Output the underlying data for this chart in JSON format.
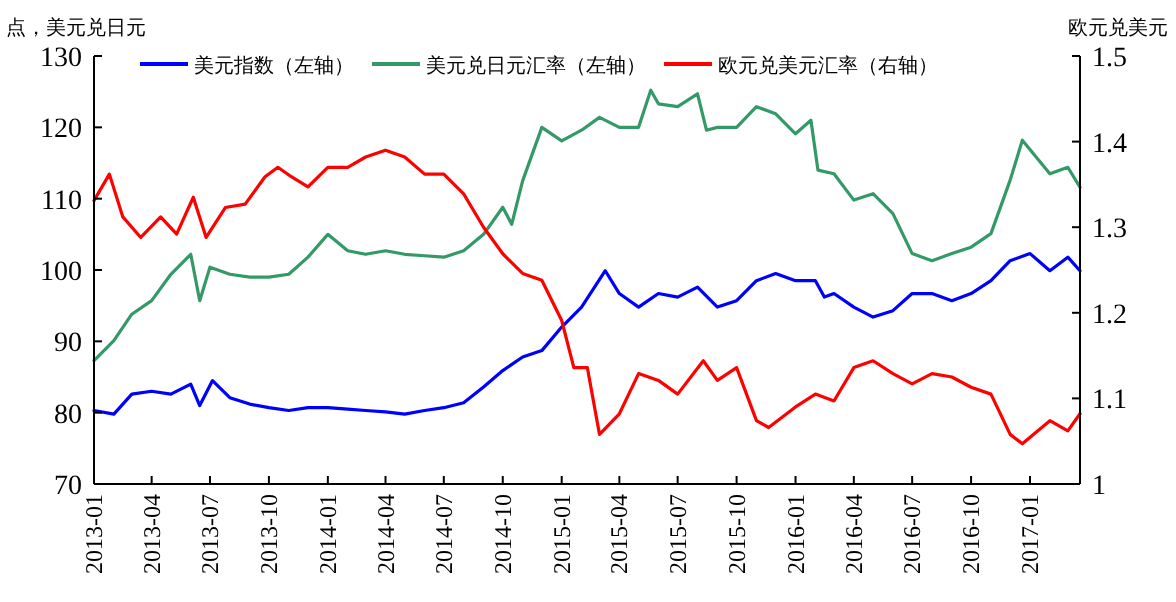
{
  "chart_data": {
    "type": "line",
    "ylabel": "点，美元兑日元",
    "y2label": "欧元兑美元",
    "xlim": [
      "2013-01-01",
      "2017-03-20"
    ],
    "xticks": [
      "2013-01",
      "2013-04",
      "2013-07",
      "2013-10",
      "2014-01",
      "2014-04",
      "2014-07",
      "2014-10",
      "2015-01",
      "2015-04",
      "2015-07",
      "2015-10",
      "2016-01",
      "2016-04",
      "2016-07",
      "2016-10",
      "2017-01"
    ],
    "ylim": [
      70,
      130
    ],
    "yticks": [
      70,
      80,
      90,
      100,
      110,
      120,
      130
    ],
    "y2lim": [
      1,
      1.5
    ],
    "y2ticks": [
      1,
      1.1,
      1.2,
      1.3,
      1.4,
      1.5
    ],
    "legend": "top",
    "grid": false,
    "marker": "none",
    "line_style": "solid",
    "series": [
      {
        "name": "美元指数（左轴）",
        "color": "#0000ff",
        "x": [
          "2013-01-01",
          "2013-02-01",
          "2013-03-01",
          "2013-04-01",
          "2013-05-01",
          "2013-06-01",
          "2013-06-15",
          "2013-07-05",
          "2013-08-01",
          "2013-09-01",
          "2013-10-01",
          "2013-11-01",
          "2013-12-01",
          "2014-01-01",
          "2014-02-01",
          "2014-03-01",
          "2014-04-01",
          "2014-05-01",
          "2014-06-01",
          "2014-07-01",
          "2014-08-01",
          "2014-09-01",
          "2014-10-01",
          "2014-11-01",
          "2014-12-01",
          "2015-01-01",
          "2015-02-01",
          "2015-03-10",
          "2015-04-01",
          "2015-05-01",
          "2015-06-01",
          "2015-07-01",
          "2015-08-01",
          "2015-09-01",
          "2015-10-01",
          "2015-11-01",
          "2015-12-01",
          "2016-01-01",
          "2016-02-01",
          "2016-02-15",
          "2016-03-01",
          "2016-04-01",
          "2016-05-01",
          "2016-06-01",
          "2016-07-01",
          "2016-08-01",
          "2016-09-01",
          "2016-10-01",
          "2016-11-01",
          "2016-12-01",
          "2017-01-01",
          "2017-02-01",
          "2017-03-01",
          "2017-03-20"
        ],
        "values": [
          80.3,
          79.8,
          82.6,
          83,
          82.6,
          84,
          81,
          84.5,
          82.1,
          81.2,
          80.7,
          80.3,
          80.7,
          80.7,
          80.5,
          80.3,
          80.1,
          79.8,
          80.3,
          80.7,
          81.4,
          83.6,
          85.9,
          87.8,
          88.7,
          92,
          94.8,
          99.9,
          96.7,
          94.8,
          96.7,
          96.2,
          97.6,
          94.8,
          95.7,
          98.5,
          99.5,
          98.5,
          98.5,
          96.2,
          96.7,
          94.8,
          93.4,
          94.3,
          96.7,
          96.7,
          95.7,
          96.7,
          98.5,
          101.3,
          102.3,
          99.9,
          101.8,
          99.9
        ]
      },
      {
        "name": "美元兑日元汇率（左轴）",
        "color": "#339966",
        "x": [
          "2013-01-01",
          "2013-02-01",
          "2013-03-01",
          "2013-04-01",
          "2013-05-01",
          "2013-06-01",
          "2013-06-15",
          "2013-07-01",
          "2013-08-01",
          "2013-09-01",
          "2013-10-01",
          "2013-11-01",
          "2013-12-01",
          "2014-01-01",
          "2014-02-01",
          "2014-03-01",
          "2014-04-01",
          "2014-05-01",
          "2014-06-01",
          "2014-07-01",
          "2014-08-01",
          "2014-09-01",
          "2014-10-01",
          "2014-10-15",
          "2014-11-01",
          "2014-12-01",
          "2015-01-01",
          "2015-02-01",
          "2015-03-01",
          "2015-04-01",
          "2015-05-01",
          "2015-05-20",
          "2015-06-01",
          "2015-07-01",
          "2015-08-01",
          "2015-08-15",
          "2015-09-01",
          "2015-10-01",
          "2015-11-01",
          "2015-12-01",
          "2016-01-01",
          "2016-01-25",
          "2016-02-05",
          "2016-03-01",
          "2016-04-01",
          "2016-05-01",
          "2016-06-01",
          "2016-07-01",
          "2016-08-01",
          "2016-09-01",
          "2016-10-01",
          "2016-11-01",
          "2016-12-01",
          "2016-12-20",
          "2017-02-01",
          "2017-03-01",
          "2017-03-20"
        ],
        "values": [
          87.3,
          90.1,
          93.8,
          95.7,
          99.4,
          102.2,
          95.7,
          100.4,
          99.4,
          99,
          99,
          99.4,
          101.8,
          105,
          102.7,
          102.2,
          102.7,
          102.2,
          102,
          101.8,
          102.7,
          105,
          108.8,
          106.4,
          112.5,
          120,
          118.1,
          119.6,
          121.4,
          120,
          120,
          125.2,
          123.3,
          122.9,
          124.7,
          119.6,
          120,
          120,
          122.9,
          121.9,
          119.1,
          121,
          114,
          113.5,
          109.8,
          110.7,
          107.9,
          102.3,
          101.3,
          102.3,
          103.2,
          105.1,
          112.6,
          118.2,
          113.5,
          114.4,
          111.6
        ]
      },
      {
        "name": "欧元兑美元汇率（右轴）",
        "color": "#ff0000",
        "axis": "y2",
        "x": [
          "2013-01-01",
          "2013-01-25",
          "2013-02-15",
          "2013-03-15",
          "2013-04-15",
          "2013-05-10",
          "2013-06-05",
          "2013-06-25",
          "2013-07-25",
          "2013-08-25",
          "2013-09-25",
          "2013-10-15",
          "2013-11-05",
          "2013-12-01",
          "2014-01-01",
          "2014-02-01",
          "2014-03-01",
          "2014-04-01",
          "2014-05-01",
          "2014-06-01",
          "2014-07-01",
          "2014-08-01",
          "2014-09-01",
          "2014-10-01",
          "2014-11-01",
          "2014-12-01",
          "2015-01-01",
          "2015-01-20",
          "2015-02-10",
          "2015-03-01",
          "2015-04-01",
          "2015-05-01",
          "2015-06-01",
          "2015-07-01",
          "2015-08-10",
          "2015-09-01",
          "2015-10-01",
          "2015-11-01",
          "2015-11-20",
          "2016-01-01",
          "2016-02-01",
          "2016-03-01",
          "2016-04-01",
          "2016-05-01",
          "2016-06-01",
          "2016-07-01",
          "2016-08-01",
          "2016-09-01",
          "2016-10-01",
          "2016-11-01",
          "2016-12-01",
          "2016-12-20",
          "2017-02-01",
          "2017-03-01",
          "2017-03-20"
        ],
        "values": [
          1.331,
          1.362,
          1.312,
          1.288,
          1.312,
          1.292,
          1.335,
          1.288,
          1.323,
          1.327,
          1.359,
          1.37,
          1.359,
          1.347,
          1.37,
          1.37,
          1.382,
          1.39,
          1.382,
          1.362,
          1.362,
          1.339,
          1.3,
          1.269,
          1.246,
          1.238,
          1.191,
          1.136,
          1.136,
          1.058,
          1.082,
          1.129,
          1.121,
          1.105,
          1.144,
          1.121,
          1.136,
          1.074,
          1.066,
          1.09,
          1.105,
          1.097,
          1.136,
          1.144,
          1.129,
          1.117,
          1.129,
          1.125,
          1.113,
          1.105,
          1.058,
          1.047,
          1.074,
          1.062,
          1.082
        ]
      }
    ]
  }
}
